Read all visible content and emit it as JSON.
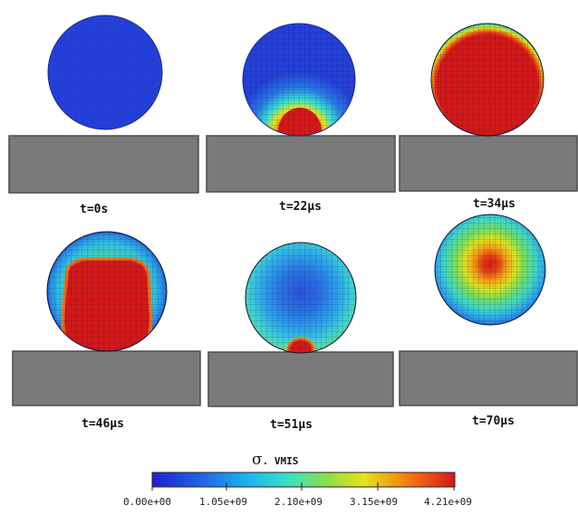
{
  "panels": [
    {
      "label": "t=0s",
      "stress": "none"
    },
    {
      "label": "t=22μs",
      "stress": "contact-small"
    },
    {
      "label": "t=34μs",
      "stress": "full-red"
    },
    {
      "label": "t=46μs",
      "stress": "bottom-red"
    },
    {
      "label": "t=51μs",
      "stress": "low-with-contact"
    },
    {
      "label": "t=70μs",
      "stress": "center-hot"
    }
  ],
  "colorbar": {
    "symbol": "σ",
    "variable": ". VMIS",
    "ticks": [
      "0.00e+00",
      "1.05e+09",
      "2.10e+09",
      "3.15e+09",
      "4.21e+09"
    ],
    "colors": [
      "#1f1fd6",
      "#19a8ec",
      "#34e0d0",
      "#7fe34a",
      "#e8e21c",
      "#f57e12",
      "#d81818"
    ]
  },
  "colors": {
    "substrate": "#7a7a7a",
    "substrate_edge": "#4c4c4c",
    "low_stress": "#2440d8",
    "high_stress": "#d41818"
  }
}
